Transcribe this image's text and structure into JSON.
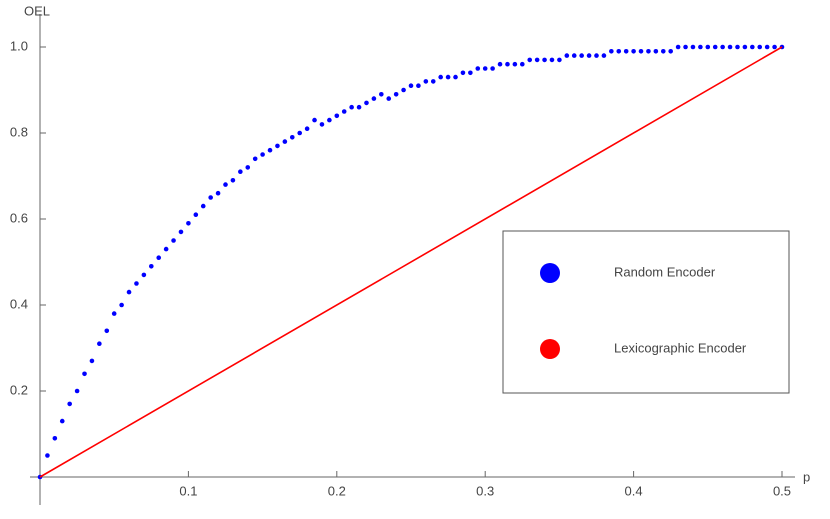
{
  "chart_data": {
    "type": "scatter",
    "x_label": "p",
    "y_label": "OEL",
    "xlim": [
      0,
      0.5
    ],
    "ylim": [
      0,
      1
    ],
    "xticks": [
      0.1,
      0.2,
      0.3,
      0.4,
      0.5
    ],
    "yticks": [
      0.2,
      0.4,
      0.6,
      0.8,
      {
        "value": 1,
        "label": "1.0"
      }
    ],
    "legend": "right",
    "series": [
      {
        "name": "Random Encoder",
        "type": "scatter",
        "color": "#0000ff",
        "x": [
          0,
          0.005,
          0.01,
          0.015,
          0.02,
          0.025,
          0.03,
          0.035,
          0.04,
          0.045,
          0.05,
          0.055,
          0.06,
          0.065,
          0.07,
          0.075,
          0.08,
          0.085,
          0.09,
          0.095,
          0.1,
          0.105,
          0.11,
          0.115,
          0.12,
          0.125,
          0.13,
          0.135,
          0.14,
          0.145,
          0.15,
          0.155,
          0.16,
          0.165,
          0.17,
          0.175,
          0.18,
          0.185,
          0.19,
          0.195,
          0.2,
          0.205,
          0.21,
          0.215,
          0.22,
          0.225,
          0.23,
          0.235,
          0.24,
          0.245,
          0.25,
          0.255,
          0.26,
          0.265,
          0.27,
          0.275,
          0.28,
          0.285,
          0.29,
          0.295,
          0.3,
          0.305,
          0.31,
          0.315,
          0.32,
          0.325,
          0.33,
          0.335,
          0.34,
          0.345,
          0.35,
          0.355,
          0.36,
          0.365,
          0.37,
          0.375,
          0.38,
          0.385,
          0.39,
          0.395,
          0.4,
          0.405,
          0.41,
          0.415,
          0.42,
          0.425,
          0.43,
          0.435,
          0.44,
          0.445,
          0.45,
          0.455,
          0.46,
          0.465,
          0.47,
          0.475,
          0.48,
          0.485,
          0.49,
          0.495,
          0.5
        ],
        "values": [
          0,
          0.05,
          0.09,
          0.13,
          0.17,
          0.2,
          0.24,
          0.27,
          0.31,
          0.34,
          0.38,
          0.4,
          0.43,
          0.45,
          0.47,
          0.49,
          0.51,
          0.53,
          0.55,
          0.57,
          0.59,
          0.61,
          0.63,
          0.65,
          0.66,
          0.68,
          0.69,
          0.71,
          0.72,
          0.74,
          0.75,
          0.76,
          0.77,
          0.78,
          0.79,
          0.8,
          0.81,
          0.83,
          0.82,
          0.83,
          0.84,
          0.85,
          0.86,
          0.86,
          0.87,
          0.88,
          0.89,
          0.88,
          0.89,
          0.9,
          0.91,
          0.91,
          0.92,
          0.92,
          0.93,
          0.93,
          0.93,
          0.94,
          0.94,
          0.95,
          0.95,
          0.95,
          0.96,
          0.96,
          0.96,
          0.96,
          0.97,
          0.97,
          0.97,
          0.97,
          0.97,
          0.98,
          0.98,
          0.98,
          0.98,
          0.98,
          0.98,
          0.99,
          0.99,
          0.99,
          0.99,
          0.99,
          0.99,
          0.99,
          0.99,
          0.99,
          1,
          1,
          1,
          1,
          1,
          1,
          1,
          1,
          1,
          1,
          1,
          1,
          1,
          1,
          1
        ]
      },
      {
        "name": "Lexicographic Encoder",
        "type": "line",
        "color": "#ff0000",
        "x": [
          0,
          0.5
        ],
        "values": [
          0,
          1
        ]
      }
    ]
  }
}
